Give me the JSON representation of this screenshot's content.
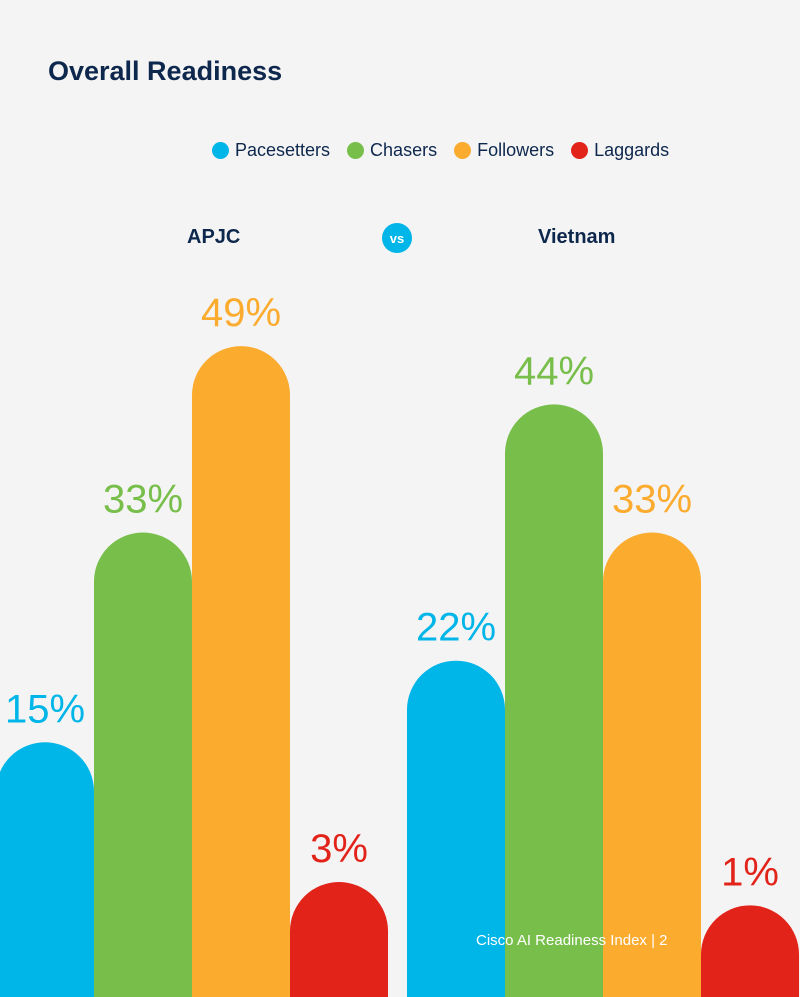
{
  "title": "Overall Readiness",
  "legend": [
    {
      "label": "Pacesetters",
      "color": "#00b5e8"
    },
    {
      "label": "Chasers",
      "color": "#78be4b"
    },
    {
      "label": "Followers",
      "color": "#fbab2e"
    },
    {
      "label": "Laggards",
      "color": "#e2231a"
    }
  ],
  "comparison": {
    "left": "APJC",
    "vs": "vs",
    "right": "Vietnam"
  },
  "chart_data": {
    "type": "bar",
    "categories": [
      "APJC",
      "Vietnam"
    ],
    "series": [
      {
        "name": "Pacesetters",
        "color": "#00b5e8",
        "values": [
          15,
          22
        ],
        "labels": [
          "15%",
          "22%"
        ]
      },
      {
        "name": "Chasers",
        "color": "#78be4b",
        "values": [
          33,
          44
        ],
        "labels": [
          "33%",
          "44%"
        ]
      },
      {
        "name": "Followers",
        "color": "#fbab2e",
        "values": [
          49,
          33
        ],
        "labels": [
          "49%",
          "33%"
        ]
      },
      {
        "name": "Laggards",
        "color": "#e2231a",
        "values": [
          3,
          1
        ],
        "labels": [
          "3%",
          "1%"
        ]
      }
    ],
    "unit": "%"
  },
  "footer": "Cisco AI Readiness Index  |  2"
}
